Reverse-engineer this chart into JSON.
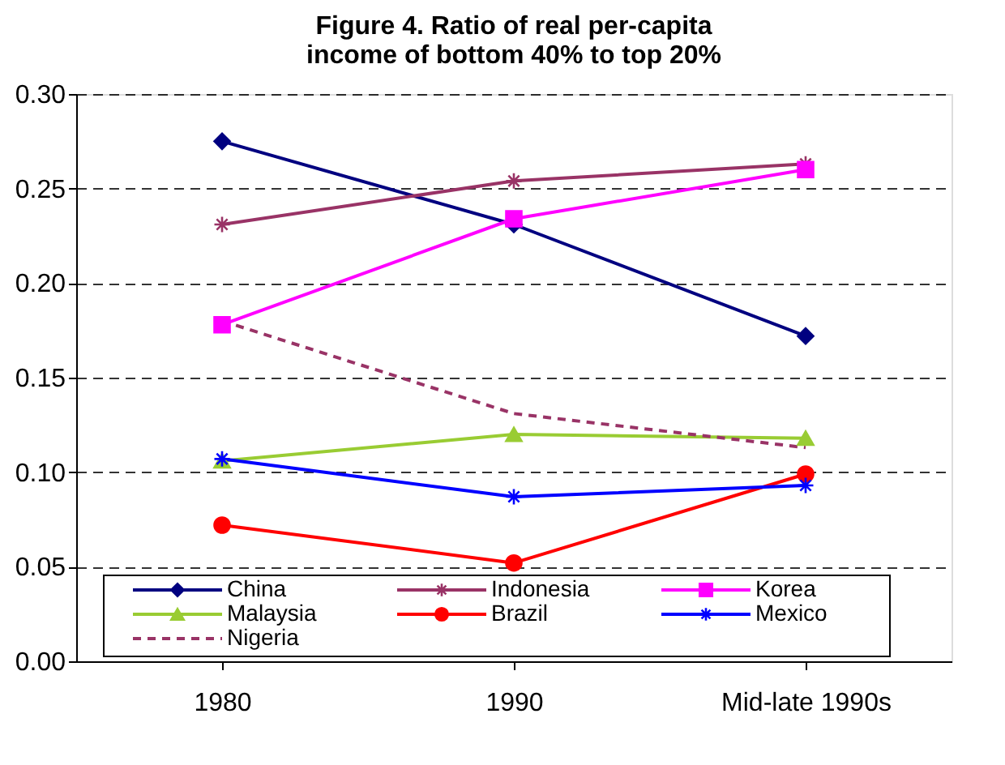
{
  "chart_data": {
    "type": "line",
    "title": "Figure 4. Ratio of real per-capita income of bottom 40% to top 20%",
    "categories": [
      "1980",
      "1990",
      "Mid-late 1990s"
    ],
    "series": [
      {
        "name": "China",
        "color": "#000080",
        "marker": "diamond",
        "values": [
          0.275,
          0.231,
          0.172
        ]
      },
      {
        "name": "Indonesia",
        "color": "#993366",
        "marker": "cross",
        "values": [
          0.231,
          0.254,
          0.263
        ]
      },
      {
        "name": "Korea",
        "color": "#ff00ff",
        "marker": "square",
        "values": [
          0.178,
          0.234,
          0.26
        ]
      },
      {
        "name": "Malaysia",
        "color": "#99cc33",
        "marker": "triangle",
        "values": [
          0.106,
          0.12,
          0.118
        ]
      },
      {
        "name": "Brazil",
        "color": "#ff0000",
        "marker": "circle",
        "values": [
          0.072,
          0.052,
          0.099
        ]
      },
      {
        "name": "Mexico",
        "color": "#0000ff",
        "marker": "cross",
        "values": [
          0.107,
          0.087,
          0.093
        ]
      },
      {
        "name": "Nigeria",
        "color": "#993366",
        "marker": "none",
        "line_style": "dashed",
        "values": [
          0.18,
          0.131,
          0.113
        ]
      }
    ],
    "ylim": [
      0,
      0.3
    ],
    "yticks": [
      {
        "value": 0,
        "label": "0.00"
      },
      {
        "value": 0.05,
        "label": "0.05"
      },
      {
        "value": 0.1,
        "label": "0.10"
      },
      {
        "value": 0.15,
        "label": "0.15"
      },
      {
        "value": 0.2,
        "label": "0.20"
      },
      {
        "value": 0.25,
        "label": "0.25"
      },
      {
        "value": 0.3,
        "label": "0.30"
      }
    ],
    "grid": "y",
    "legend": "bottom"
  }
}
